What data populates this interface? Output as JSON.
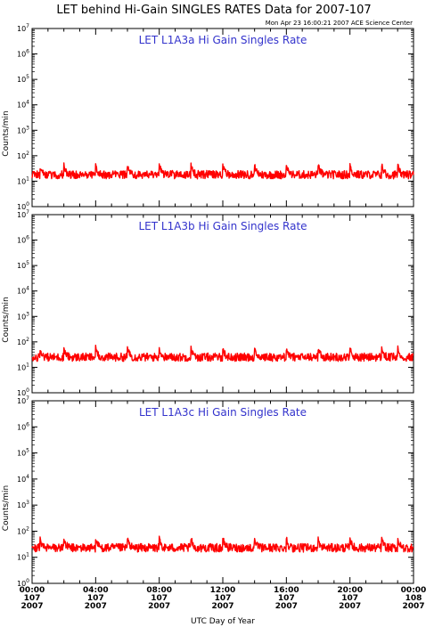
{
  "title": "LET behind Hi-Gain SINGLES RATES Data for 2007-107",
  "timestamp": "Mon Apr 23 16:00:21 2007 ACE Science Center",
  "xlabel": "UTC Day of Year",
  "series_color": "#ff0000",
  "label_color": "#3333cc",
  "chart_data": [
    {
      "type": "line",
      "title": "LET L1A3a Hi Gain Singles Rate",
      "ylabel": "Counts/min",
      "yscale": "log",
      "ylim": [
        1,
        10000000
      ],
      "xlim": [
        0,
        24
      ],
      "baseline": 18,
      "spike_hours": [
        0.5,
        2.0,
        4.0,
        6.0,
        8.0,
        10.0,
        12.0,
        14.0,
        16.0,
        18.0,
        20.0,
        22.0,
        23.0
      ],
      "spike_value": 45,
      "min_value": 9,
      "max_value": 60
    },
    {
      "type": "line",
      "title": "LET L1A3b Hi Gain Singles Rate",
      "ylabel": "Counts/min",
      "yscale": "log",
      "ylim": [
        1,
        10000000
      ],
      "xlim": [
        0,
        24
      ],
      "baseline": 25,
      "spike_hours": [
        0.5,
        2.0,
        4.0,
        6.0,
        8.0,
        10.0,
        12.0,
        14.0,
        16.0,
        18.0,
        20.0,
        22.0,
        23.0
      ],
      "spike_value": 60,
      "min_value": 14,
      "max_value": 80
    },
    {
      "type": "line",
      "title": "LET L1A3c Hi Gain Singles Rate",
      "ylabel": "Counts/min",
      "yscale": "log",
      "ylim": [
        1,
        10000000
      ],
      "xlim": [
        0,
        24
      ],
      "baseline": 23,
      "spike_hours": [
        0.5,
        2.0,
        4.0,
        6.0,
        8.0,
        10.0,
        12.0,
        14.0,
        16.0,
        18.0,
        20.0,
        22.0,
        23.0
      ],
      "spike_value": 55,
      "min_value": 10,
      "max_value": 75
    }
  ],
  "y_ticks": [
    {
      "base": "10",
      "exp": "0"
    },
    {
      "base": "10",
      "exp": "1"
    },
    {
      "base": "10",
      "exp": "2"
    },
    {
      "base": "10",
      "exp": "3"
    },
    {
      "base": "10",
      "exp": "4"
    },
    {
      "base": "10",
      "exp": "5"
    },
    {
      "base": "10",
      "exp": "6"
    },
    {
      "base": "10",
      "exp": "7"
    }
  ],
  "x_ticks": [
    {
      "time": "00:00",
      "day": "107",
      "year": "2007"
    },
    {
      "time": "04:00",
      "day": "107",
      "year": "2007"
    },
    {
      "time": "08:00",
      "day": "107",
      "year": "2007"
    },
    {
      "time": "12:00",
      "day": "107",
      "year": "2007"
    },
    {
      "time": "16:00",
      "day": "107",
      "year": "2007"
    },
    {
      "time": "20:00",
      "day": "107",
      "year": "2007"
    },
    {
      "time": "00:00",
      "day": "108",
      "year": "2007"
    }
  ]
}
